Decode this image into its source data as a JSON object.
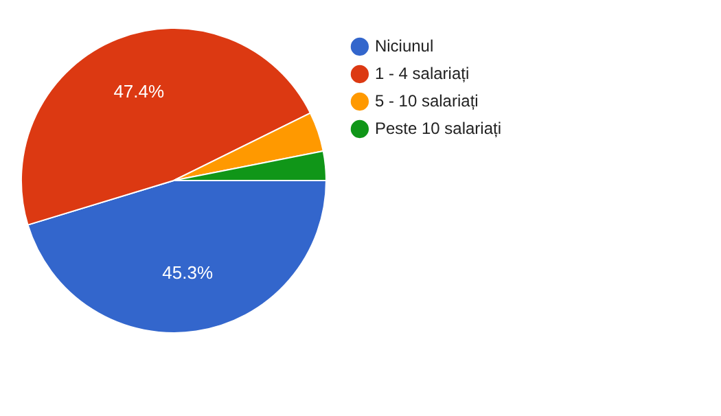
{
  "chart_data": {
    "type": "pie",
    "categories": [
      "Niciunul",
      "1 - 4 salariați",
      "5 - 10 salariați",
      "Peste 10 salariați"
    ],
    "values": [
      45.3,
      47.4,
      4.2,
      3.1
    ],
    "colors": [
      "#3366cc",
      "#dc3912",
      "#ff9900",
      "#109618"
    ],
    "value_labels": [
      "45.3%",
      "47.4%",
      null,
      null
    ],
    "legend": "top right"
  }
}
